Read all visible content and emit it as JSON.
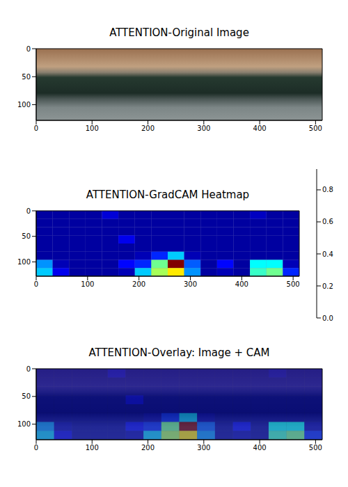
{
  "chart_data": [
    {
      "type": "image",
      "title": "ATTENTION-Original Image",
      "xlim": [
        0,
        512
      ],
      "ylim": [
        0,
        128
      ],
      "xticks": [
        0,
        100,
        200,
        300,
        400,
        500
      ],
      "yticks": [
        0,
        50,
        100
      ]
    },
    {
      "type": "heatmap",
      "title": "ATTENTION-GradCAM Heatmap",
      "xlim": [
        0,
        512
      ],
      "ylim": [
        0,
        128
      ],
      "xticks": [
        0,
        100,
        200,
        300,
        400,
        500
      ],
      "yticks": [
        0,
        50,
        100
      ],
      "cells": [
        [
          0.03,
          0.03,
          0.03,
          0.03,
          0.08,
          0.03,
          0.03,
          0.03,
          0.03,
          0.03,
          0.03,
          0.03,
          0.03,
          0.06,
          0.03,
          0.03
        ],
        [
          0.03,
          0.03,
          0.03,
          0.03,
          0.03,
          0.03,
          0.03,
          0.03,
          0.03,
          0.03,
          0.03,
          0.03,
          0.03,
          0.03,
          0.03,
          0.03
        ],
        [
          0.03,
          0.03,
          0.03,
          0.03,
          0.03,
          0.03,
          0.03,
          0.03,
          0.03,
          0.03,
          0.03,
          0.03,
          0.03,
          0.03,
          0.03,
          0.03
        ],
        [
          0.03,
          0.03,
          0.03,
          0.03,
          0.03,
          0.1,
          0.03,
          0.03,
          0.03,
          0.03,
          0.03,
          0.03,
          0.03,
          0.03,
          0.03,
          0.03
        ],
        [
          0.03,
          0.03,
          0.03,
          0.03,
          0.03,
          0.03,
          0.03,
          0.03,
          0.03,
          0.03,
          0.03,
          0.03,
          0.03,
          0.03,
          0.03,
          0.03
        ],
        [
          0.03,
          0.03,
          0.03,
          0.03,
          0.03,
          0.03,
          0.05,
          0.15,
          0.3,
          0.05,
          0.03,
          0.03,
          0.03,
          0.03,
          0.03,
          0.03
        ],
        [
          0.25,
          0.05,
          0.03,
          0.03,
          0.03,
          0.12,
          0.15,
          0.45,
          0.93,
          0.2,
          0.03,
          0.12,
          0.03,
          0.35,
          0.35,
          0.05
        ],
        [
          0.3,
          0.1,
          0.03,
          0.03,
          0.03,
          0.05,
          0.3,
          0.5,
          0.6,
          0.25,
          0.03,
          0.05,
          0.03,
          0.4,
          0.45,
          0.15
        ]
      ],
      "colorbar_range": [
        0,
        0.93
      ],
      "colorbar_ticks": [
        {
          "value": 0,
          "label": "0.0"
        },
        0.2,
        0.4,
        0.6,
        0.8
      ]
    },
    {
      "type": "overlay",
      "title": "ATTENTION-Overlay: Image + CAM",
      "xlim": [
        0,
        512
      ],
      "ylim": [
        0,
        128
      ],
      "xticks": [
        0,
        100,
        200,
        300,
        400,
        500
      ],
      "yticks": [
        0,
        50,
        100
      ]
    }
  ]
}
